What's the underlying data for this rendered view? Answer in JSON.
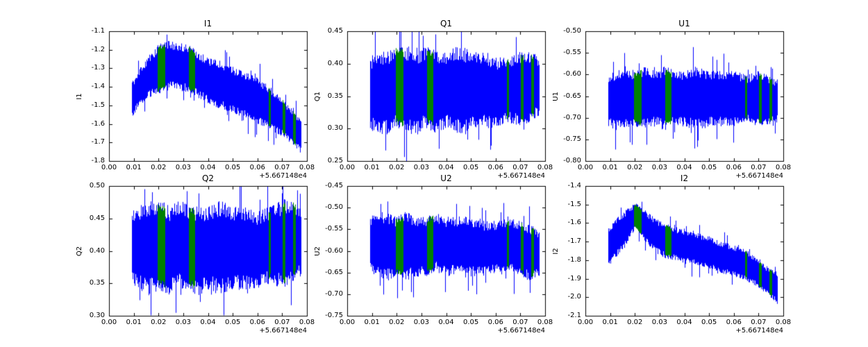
{
  "figure": {
    "background": "#ffffff",
    "description": "2x3 grid of noisy time-series subplots with flagged (green) segments"
  },
  "chart_data": {
    "type": "line",
    "layout": "2 rows x 3 columns",
    "line_color": "#0000ff",
    "flagged_color": "#008000",
    "xlim": [
      0.0,
      0.08
    ],
    "x_tick_labels": [
      "0.00",
      "0.01",
      "0.02",
      "0.03",
      "0.04",
      "0.05",
      "0.06",
      "0.07",
      "0.08"
    ],
    "x_offset_label": "+5.667148e4",
    "x_data_range": [
      0.009,
      0.0775
    ],
    "x_points": [
      0.009,
      0.012,
      0.016,
      0.02,
      0.024,
      0.028,
      0.032,
      0.036,
      0.04,
      0.045,
      0.05,
      0.055,
      0.06,
      0.065,
      0.07,
      0.074,
      0.0775
    ],
    "flagged_regions_x": [
      [
        0.0195,
        0.0225
      ],
      [
        0.0322,
        0.0346
      ],
      [
        0.0643,
        0.0653
      ],
      [
        0.07,
        0.0712
      ],
      [
        0.0742,
        0.0753
      ]
    ],
    "subplots": [
      {
        "title": "I1",
        "ylabel": "I1",
        "ylim": [
          -1.8,
          -1.1
        ],
        "y_tick_labels": [
          "-1.1",
          "-1.2",
          "-1.3",
          "-1.4",
          "-1.5",
          "-1.6",
          "-1.7",
          "-1.8"
        ],
        "upper": [
          -1.38,
          -1.3,
          -1.23,
          -1.17,
          -1.15,
          -1.16,
          -1.17,
          -1.21,
          -1.24,
          -1.26,
          -1.29,
          -1.32,
          -1.35,
          -1.4,
          -1.46,
          -1.52,
          -1.57
        ],
        "lower": [
          -1.57,
          -1.51,
          -1.46,
          -1.44,
          -1.42,
          -1.42,
          -1.43,
          -1.46,
          -1.49,
          -1.52,
          -1.54,
          -1.57,
          -1.6,
          -1.63,
          -1.67,
          -1.71,
          -1.76
        ]
      },
      {
        "title": "Q1",
        "ylabel": "Q1",
        "ylim": [
          0.25,
          0.45
        ],
        "y_tick_labels": [
          "0.45",
          "0.40",
          "0.35",
          "0.30",
          "0.25"
        ],
        "upper": [
          0.41,
          0.42,
          0.42,
          0.43,
          0.43,
          0.42,
          0.43,
          0.42,
          0.42,
          0.43,
          0.42,
          0.42,
          0.41,
          0.41,
          0.42,
          0.42,
          0.41
        ],
        "lower": [
          0.3,
          0.29,
          0.29,
          0.3,
          0.29,
          0.29,
          0.3,
          0.29,
          0.3,
          0.29,
          0.3,
          0.3,
          0.3,
          0.31,
          0.3,
          0.31,
          0.32
        ]
      },
      {
        "title": "U1",
        "ylabel": "U1",
        "ylim": [
          -0.8,
          -0.5
        ],
        "y_tick_labels": [
          "-0.50",
          "-0.55",
          "-0.60",
          "-0.65",
          "-0.70",
          "-0.75",
          "-0.80"
        ],
        "upper": [
          -0.6,
          -0.59,
          -0.58,
          -0.59,
          -0.58,
          -0.59,
          -0.58,
          -0.59,
          -0.59,
          -0.58,
          -0.59,
          -0.59,
          -0.59,
          -0.6,
          -0.59,
          -0.6,
          -0.61
        ],
        "lower": [
          -0.72,
          -0.73,
          -0.73,
          -0.72,
          -0.73,
          -0.72,
          -0.73,
          -0.72,
          -0.72,
          -0.73,
          -0.72,
          -0.72,
          -0.72,
          -0.71,
          -0.72,
          -0.72,
          -0.71
        ]
      },
      {
        "title": "Q2",
        "ylabel": "Q2",
        "ylim": [
          0.3,
          0.5
        ],
        "y_tick_labels": [
          "0.50",
          "0.45",
          "0.40",
          "0.35",
          "0.30"
        ],
        "upper": [
          0.46,
          0.47,
          0.48,
          0.48,
          0.47,
          0.48,
          0.47,
          0.47,
          0.47,
          0.48,
          0.47,
          0.47,
          0.46,
          0.47,
          0.48,
          0.48,
          0.47
        ],
        "lower": [
          0.35,
          0.34,
          0.33,
          0.34,
          0.33,
          0.34,
          0.34,
          0.33,
          0.34,
          0.33,
          0.34,
          0.34,
          0.34,
          0.35,
          0.34,
          0.35,
          0.36
        ]
      },
      {
        "title": "U2",
        "ylabel": "U2",
        "ylim": [
          -0.75,
          -0.45
        ],
        "y_tick_labels": [
          "-0.45",
          "-0.50",
          "-0.55",
          "-0.60",
          "-0.65",
          "-0.70",
          "-0.75"
        ],
        "upper": [
          -0.52,
          -0.51,
          -0.51,
          -0.52,
          -0.51,
          -0.52,
          -0.52,
          -0.51,
          -0.52,
          -0.52,
          -0.52,
          -0.53,
          -0.53,
          -0.52,
          -0.53,
          -0.54,
          -0.55
        ],
        "lower": [
          -0.65,
          -0.66,
          -0.67,
          -0.66,
          -0.67,
          -0.66,
          -0.66,
          -0.65,
          -0.66,
          -0.65,
          -0.66,
          -0.66,
          -0.65,
          -0.65,
          -0.66,
          -0.67,
          -0.66
        ]
      },
      {
        "title": "I2",
        "ylabel": "I2",
        "ylim": [
          -2.1,
          -1.4
        ],
        "y_tick_labels": [
          "-1.4",
          "-1.5",
          "-1.6",
          "-1.7",
          "-1.8",
          "-1.9",
          "-2.0",
          "-2.1"
        ],
        "upper": [
          -1.63,
          -1.58,
          -1.53,
          -1.49,
          -1.53,
          -1.57,
          -1.6,
          -1.62,
          -1.63,
          -1.65,
          -1.67,
          -1.7,
          -1.72,
          -1.74,
          -1.8,
          -1.84,
          -1.87
        ],
        "lower": [
          -1.84,
          -1.79,
          -1.73,
          -1.63,
          -1.7,
          -1.76,
          -1.79,
          -1.8,
          -1.82,
          -1.83,
          -1.85,
          -1.87,
          -1.89,
          -1.91,
          -1.95,
          -1.99,
          -2.04
        ]
      }
    ]
  }
}
